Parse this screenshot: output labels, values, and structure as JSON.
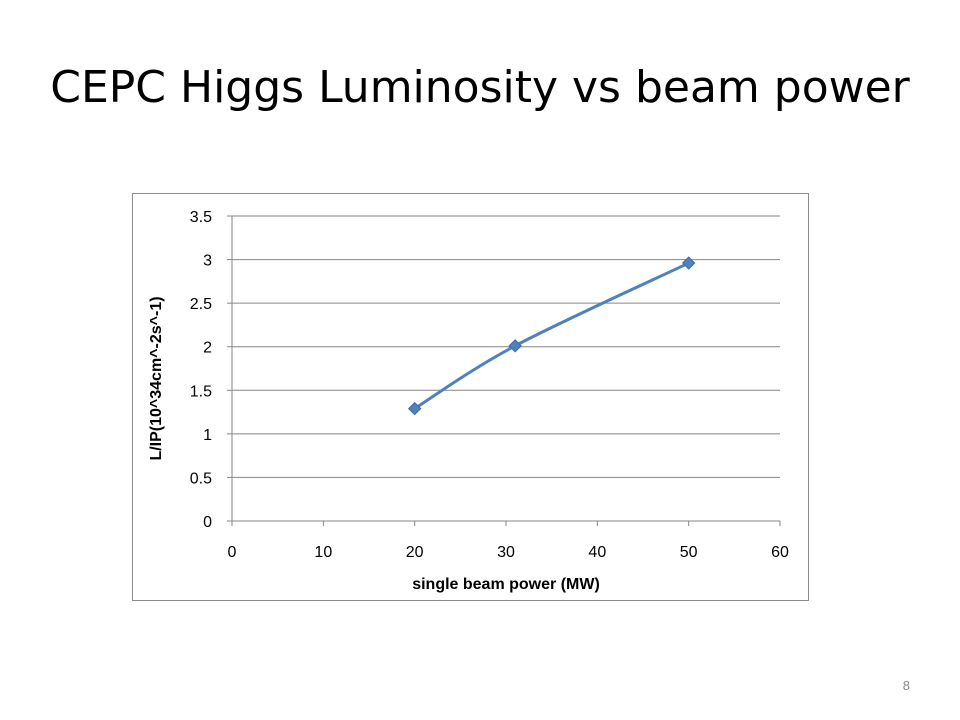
{
  "slide": {
    "title": "CEPC Higgs Luminosity vs beam power",
    "page_number": "8"
  },
  "colors": {
    "series": "#4F81BD",
    "gridline": "#868686",
    "frame": "#8c8c8c"
  },
  "chart_data": {
    "type": "scatter",
    "subtype": "smooth-line-with-markers",
    "marker": "diamond",
    "xlabel": "single beam power (MW)",
    "ylabel": "L/IP(10^34cm^-2s^-1)",
    "xlim": [
      0,
      60
    ],
    "ylim": [
      0,
      3.5
    ],
    "xticks": [
      0,
      10,
      20,
      30,
      40,
      50,
      60
    ],
    "yticks": [
      0,
      0.5,
      1,
      1.5,
      2,
      2.5,
      3,
      3.5
    ],
    "xtick_labels": [
      "0",
      "10",
      "20",
      "30",
      "40",
      "50",
      "60"
    ],
    "ytick_labels": [
      "0",
      "0.5",
      "1",
      "1.5",
      "2",
      "2.5",
      "3",
      "3.5"
    ],
    "grid": "horizontal",
    "legend": "none",
    "series": [
      {
        "x": [
          20,
          31,
          50
        ],
        "y": [
          1.29,
          2.01,
          2.96
        ]
      }
    ]
  }
}
